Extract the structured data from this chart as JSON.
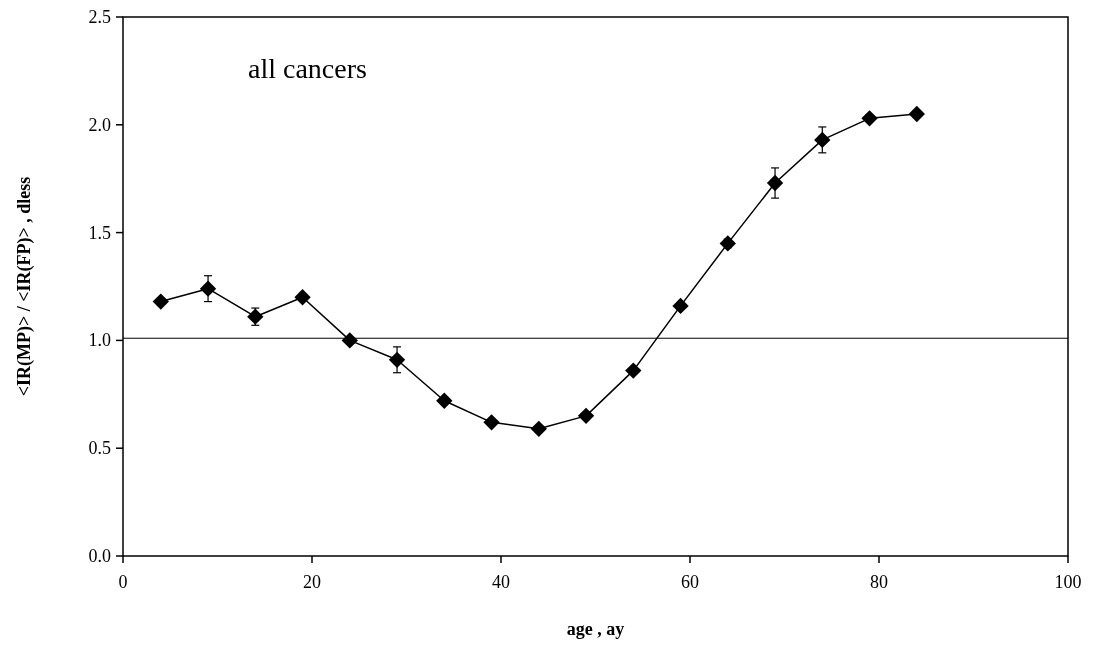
{
  "chart_data": {
    "type": "line",
    "xlabel": "age , ay",
    "ylabel": "<IR(MP)> / <IR(FP)> , dless",
    "annotations": [
      "all cancers"
    ],
    "x": [
      4,
      9,
      14,
      19,
      24,
      29,
      34,
      39,
      44,
      49,
      54,
      59,
      64,
      69,
      74,
      79,
      84
    ],
    "series": [
      {
        "color": "#000000",
        "values": [
          1.18,
          1.24,
          1.11,
          1.2,
          1.0,
          0.91,
          0.72,
          0.62,
          0.59,
          0.65,
          0.86,
          1.16,
          1.45,
          1.73,
          1.93,
          2.03,
          2.05
        ],
        "errors": [
          null,
          0.06,
          0.04,
          null,
          null,
          0.06,
          null,
          null,
          null,
          null,
          null,
          null,
          0.02,
          0.07,
          0.06,
          null,
          null
        ]
      }
    ],
    "xlim": [
      0,
      100
    ],
    "xticks": [
      0,
      20,
      40,
      60,
      80,
      100
    ],
    "ylim": [
      0,
      2.5
    ],
    "yticks": [
      {
        "value": 0,
        "label": "0.0"
      },
      {
        "value": 0.5,
        "label": "0.5"
      },
      {
        "value": 1,
        "label": "1.0"
      },
      {
        "value": 1.5,
        "label": "1.5"
      },
      {
        "value": 2,
        "label": "2.0"
      },
      {
        "value": 2.5,
        "label": "2.5"
      }
    ],
    "ref_lines": [
      {
        "axis": "y",
        "value": 1.01,
        "color": "#000000"
      }
    ],
    "grid": false,
    "marker": "diamond",
    "line_style": "solid"
  }
}
